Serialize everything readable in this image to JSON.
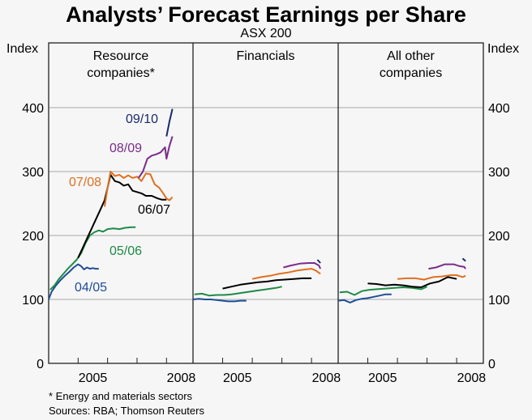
{
  "chart_data": {
    "type": "line",
    "title": "Analysts’ Forecast Earnings per Share",
    "subtitle": "ASX 200",
    "ylabel_left": "Index",
    "ylabel_right": "Index",
    "ylim": [
      0,
      450
    ],
    "yticks": [
      0,
      100,
      200,
      300,
      400
    ],
    "xlim": [
      2004.0,
      2008.9
    ],
    "xtick_labels": [
      "2005",
      "2008"
    ],
    "grid": true,
    "footnote": "*   Energy and materials sectors",
    "source": "Sources: RBA; Thomson Reuters",
    "colors": {
      "04/05": "#1f4e96",
      "05/06": "#1e8a46",
      "06/07": "#000000",
      "07/08": "#e07020",
      "08/09": "#7b2c8a",
      "09/10": "#1a2a6c"
    },
    "panels": [
      {
        "title_line1": "Resource",
        "title_line2": "companies*",
        "series": [
          {
            "name": "04/05",
            "label_show": true,
            "x": [
              2004.0,
              2004.1,
              2004.25,
              2004.4,
              2004.55,
              2004.7,
              2004.85,
              2005.0,
              2005.1,
              2005.2,
              2005.3,
              2005.4,
              2005.5,
              2005.6,
              2005.7
            ],
            "y": [
              100,
              112,
              122,
              130,
              137,
              143,
              150,
              155,
              152,
              147,
              150,
              148,
              149,
              148,
              148
            ]
          },
          {
            "name": "05/06",
            "label_show": true,
            "x": [
              2004.05,
              2004.2,
              2004.35,
              2004.5,
              2004.65,
              2004.8,
              2004.95,
              2005.1,
              2005.25,
              2005.4,
              2005.55,
              2005.7,
              2005.85,
              2006.0,
              2006.2,
              2006.4,
              2006.6,
              2006.8,
              2006.95
            ],
            "y": [
              115,
              122,
              132,
              140,
              148,
              155,
              162,
              172,
              188,
              200,
              205,
              208,
              206,
              210,
              211,
              210,
              212,
              213,
              213
            ]
          },
          {
            "name": "06/07",
            "label_show": true,
            "x": [
              2005.0,
              2005.15,
              2005.3,
              2005.45,
              2005.6,
              2005.75,
              2005.9,
              2006.0,
              2006.1,
              2006.25,
              2006.4,
              2006.55,
              2006.7,
              2006.85,
              2007.0,
              2007.15,
              2007.3,
              2007.5,
              2007.7,
              2007.85,
              2008.0
            ],
            "y": [
              165,
              180,
              195,
              210,
              225,
              240,
              255,
              275,
              295,
              285,
              283,
              278,
              280,
              270,
              268,
              266,
              262,
              262,
              258,
              256,
              256
            ]
          },
          {
            "name": "07/08",
            "label_show": true,
            "x": [
              2005.9,
              2006.0,
              2006.1,
              2006.25,
              2006.4,
              2006.55,
              2006.7,
              2006.85,
              2007.0,
              2007.15,
              2007.3,
              2007.45,
              2007.6,
              2007.75,
              2007.9,
              2008.0,
              2008.1,
              2008.2
            ],
            "y": [
              245,
              275,
              300,
              293,
              295,
              290,
              294,
              290,
              292,
              285,
              297,
              296,
              280,
              275,
              265,
              258,
              255,
              260
            ]
          },
          {
            "name": "08/09",
            "label_show": true,
            "x": [
              2007.05,
              2007.2,
              2007.35,
              2007.5,
              2007.65,
              2007.8,
              2007.95,
              2008.0,
              2008.1,
              2008.2
            ],
            "y": [
              290,
              300,
              320,
              325,
              327,
              330,
              338,
              320,
              340,
              355
            ]
          },
          {
            "name": "09/10",
            "label_show": true,
            "x": [
              2008.0,
              2008.1,
              2008.2
            ],
            "y": [
              355,
              378,
              398
            ]
          }
        ]
      },
      {
        "title_line1": "Financials",
        "title_line2": "",
        "series": [
          {
            "name": "04/05",
            "x": [
              2004.0,
              2004.2,
              2004.4,
              2004.6,
              2004.8,
              2005.0,
              2005.2,
              2005.4,
              2005.6,
              2005.8
            ],
            "y": [
              100,
              101,
              100,
              100,
              99,
              98,
              97,
              97,
              98,
              98
            ]
          },
          {
            "name": "05/06",
            "x": [
              2004.05,
              2004.3,
              2004.55,
              2004.8,
              2005.05,
              2005.3,
              2005.6,
              2005.9,
              2006.2,
              2006.5,
              2006.8,
              2007.0
            ],
            "y": [
              108,
              109,
              106,
              107,
              107,
              108,
              110,
              112,
              114,
              116,
              118,
              120
            ]
          },
          {
            "name": "06/07",
            "x": [
              2005.0,
              2005.3,
              2005.6,
              2005.9,
              2006.2,
              2006.5,
              2006.8,
              2007.1,
              2007.4,
              2007.7,
              2008.0
            ],
            "y": [
              117,
              120,
              123,
              125,
              127,
              128,
              130,
              131,
              132,
              133,
              133
            ]
          },
          {
            "name": "07/08",
            "x": [
              2006.0,
              2006.3,
              2006.6,
              2006.9,
              2007.2,
              2007.5,
              2007.8,
              2008.0,
              2008.15,
              2008.3
            ],
            "y": [
              132,
              135,
              137,
              140,
              142,
              145,
              147,
              148,
              145,
              140
            ]
          },
          {
            "name": "08/09",
            "x": [
              2007.05,
              2007.3,
              2007.6,
              2007.9,
              2008.1,
              2008.25,
              2008.3
            ],
            "y": [
              150,
              153,
              156,
              157,
              157,
              153,
              148
            ]
          },
          {
            "name": "09/10",
            "x": [
              2008.2,
              2008.3
            ],
            "y": [
              162,
              157
            ]
          }
        ]
      },
      {
        "title_line1": "All other",
        "title_line2": "companies",
        "series": [
          {
            "name": "04/05",
            "x": [
              2004.0,
              2004.2,
              2004.4,
              2004.6,
              2004.8,
              2005.0,
              2005.2,
              2005.4,
              2005.6,
              2005.8
            ],
            "y": [
              98,
              99,
              95,
              99,
              101,
              102,
              104,
              106,
              108,
              108
            ]
          },
          {
            "name": "05/06",
            "x": [
              2004.05,
              2004.3,
              2004.55,
              2004.8,
              2005.05,
              2005.3,
              2005.6,
              2005.9,
              2006.2,
              2006.5,
              2006.8,
              2007.0
            ],
            "y": [
              111,
              112,
              107,
              113,
              115,
              116,
              117,
              118,
              119,
              118,
              116,
              120
            ]
          },
          {
            "name": "06/07",
            "x": [
              2005.0,
              2005.3,
              2005.6,
              2005.9,
              2006.2,
              2006.5,
              2006.8,
              2007.1,
              2007.4,
              2007.7,
              2008.0
            ],
            "y": [
              125,
              124,
              122,
              123,
              122,
              120,
              119,
              125,
              128,
              135,
              132
            ]
          },
          {
            "name": "07/08",
            "x": [
              2006.0,
              2006.3,
              2006.6,
              2006.9,
              2007.2,
              2007.5,
              2007.8,
              2008.0,
              2008.2,
              2008.3
            ],
            "y": [
              132,
              133,
              133,
              131,
              135,
              136,
              138,
              138,
              135,
              137
            ]
          },
          {
            "name": "08/09",
            "x": [
              2007.05,
              2007.3,
              2007.6,
              2007.9,
              2008.1,
              2008.25,
              2008.3
            ],
            "y": [
              148,
              150,
              155,
              155,
              152,
              151,
              148
            ]
          },
          {
            "name": "09/10",
            "x": [
              2008.2,
              2008.3
            ],
            "y": [
              164,
              160
            ]
          }
        ]
      }
    ]
  }
}
